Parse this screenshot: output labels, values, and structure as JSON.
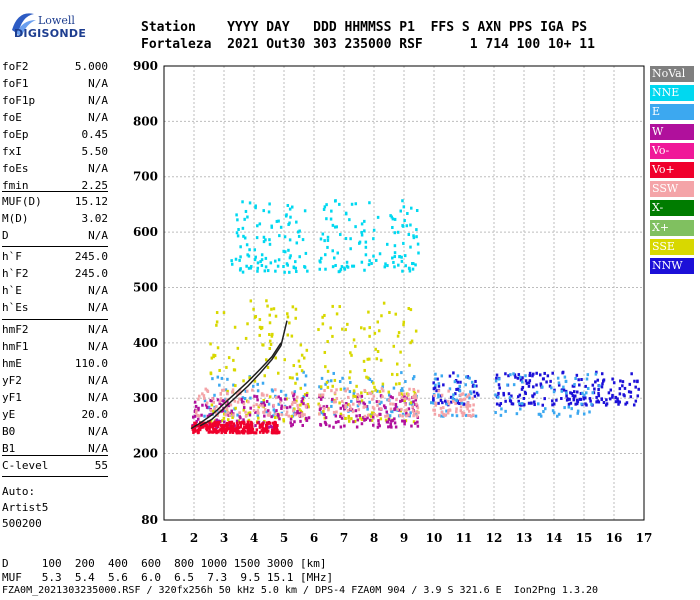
{
  "logo": {
    "line1": "Lowell",
    "line2": "DIGISONDE"
  },
  "header": {
    "row1": "Station    YYYY DAY   DDD HHMMSS P1  FFS S AXN PPS IGA PS",
    "row2": "Fortaleza  2021 Out30 303 235000 RSF      1 714 100 10+ 11"
  },
  "params_group1": [
    {
      "name": "foF2",
      "value": "5.000"
    },
    {
      "name": "foF1",
      "value": "N/A"
    },
    {
      "name": "foF1p",
      "value": "N/A"
    },
    {
      "name": "foE",
      "value": "N/A"
    },
    {
      "name": "foEp",
      "value": "0.45"
    },
    {
      "name": "fxI",
      "value": "5.50"
    },
    {
      "name": "foEs",
      "value": "N/A"
    },
    {
      "name": "fmin",
      "value": "2.25"
    }
  ],
  "params_group2": [
    {
      "name": "MUF(D)",
      "value": "15.12"
    },
    {
      "name": "M(D)",
      "value": "3.02"
    },
    {
      "name": "D",
      "value": "N/A"
    }
  ],
  "params_group3": [
    {
      "name": "h`F",
      "value": "245.0"
    },
    {
      "name": "h`F2",
      "value": "245.0"
    },
    {
      "name": "h`E",
      "value": "N/A"
    },
    {
      "name": "h`Es",
      "value": "N/A"
    }
  ],
  "params_group4": [
    {
      "name": "hmF2",
      "value": "N/A"
    },
    {
      "name": "hmF1",
      "value": "N/A"
    },
    {
      "name": "hmE",
      "value": "110.0"
    },
    {
      "name": "yF2",
      "value": "N/A"
    },
    {
      "name": "yF1",
      "value": "N/A"
    },
    {
      "name": "yE",
      "value": "20.0"
    },
    {
      "name": "B0",
      "value": "N/A"
    },
    {
      "name": "B1",
      "value": "N/A"
    }
  ],
  "params_group5": [
    {
      "name": "C-level",
      "value": "55"
    }
  ],
  "autoscaling": {
    "line1": "Auto:",
    "line2": "Artist5",
    "line3": "500200"
  },
  "legend": [
    {
      "label": "NoVal",
      "color": "#7f7f7f"
    },
    {
      "label": "NNE",
      "color": "#00d8f0"
    },
    {
      "label": "E",
      "color": "#3ca8f0"
    },
    {
      "label": "W",
      "color": "#b0109c"
    },
    {
      "label": "Vo-",
      "color": "#f01899"
    },
    {
      "label": "Vo+",
      "color": "#f0002c"
    },
    {
      "label": "SSW",
      "color": "#f4a4a8"
    },
    {
      "label": "X-",
      "color": "#007c00"
    },
    {
      "label": "X+",
      "color": "#80c060"
    },
    {
      "label": "SSE",
      "color": "#d8d800"
    },
    {
      "label": "NNW",
      "color": "#1c10d8"
    }
  ],
  "footer": {
    "row1": "D     100  200  400  600  800 1000 1500 3000 [km]",
    "row2": "MUF   5.3  5.4  5.6  6.0  6.5  7.3  9.5 15.1 [MHz]",
    "row3": "FZA0M_2021303235000.RSF / 320fx256h 50 kHz 5.0 km / DPS-4 FZA0M 904 / 3.9 S 321.6 E  Ion2Png 1.3.20"
  },
  "chart_data": {
    "type": "scatter",
    "title": "",
    "xlabel": "",
    "ylabel": "",
    "xlim": [
      1,
      17
    ],
    "ylim": [
      80,
      900
    ],
    "x_ticks": [
      1,
      2,
      3,
      4,
      5,
      6,
      7,
      8,
      9,
      10,
      11,
      12,
      13,
      14,
      15,
      16,
      17
    ],
    "y_ticks": [
      80,
      200,
      300,
      400,
      500,
      600,
      700,
      800,
      900
    ],
    "grid": true,
    "legend_position": "right",
    "echo_clusters": [
      {
        "name": "NNW",
        "color": "#1c10d8",
        "x_range": [
          9.9,
          16.8
        ],
        "h_range": [
          290,
          350
        ]
      },
      {
        "name": "E",
        "color": "#3ca8f0",
        "x_range": [
          2.3,
          15.5
        ],
        "h_range": [
          270,
          350
        ]
      },
      {
        "name": "SSE",
        "color": "#d8d800",
        "x_range": [
          2.5,
          9.4
        ],
        "h_range": [
          260,
          480
        ]
      },
      {
        "name": "W",
        "color": "#b0109c",
        "x_range": [
          1.9,
          9.5
        ],
        "h_range": [
          250,
          310
        ]
      },
      {
        "name": "SSW",
        "color": "#f4a4a8",
        "x_range": [
          2.0,
          11.3
        ],
        "h_range": [
          270,
          320
        ]
      },
      {
        "name": "Vo+",
        "color": "#f0002c",
        "x_range": [
          1.9,
          4.8
        ],
        "h_range": [
          240,
          260
        ]
      },
      {
        "name": "NNE",
        "color": "#00d8f0",
        "x_range": [
          3.2,
          9.8
        ],
        "h_range": [
          530,
          660
        ]
      }
    ],
    "trace_o": {
      "x": [
        1.9,
        2.2,
        2.6,
        3.0,
        3.4,
        3.8,
        4.2,
        4.6,
        4.9
      ],
      "y": [
        245,
        255,
        270,
        290,
        310,
        330,
        352,
        375,
        400
      ]
    },
    "trace_x": {
      "x": [
        2.2,
        2.6,
        3.0,
        3.4,
        3.8,
        4.2,
        4.6,
        4.9,
        5.1
      ],
      "y": [
        250,
        262,
        282,
        302,
        322,
        345,
        370,
        395,
        440
      ]
    }
  }
}
